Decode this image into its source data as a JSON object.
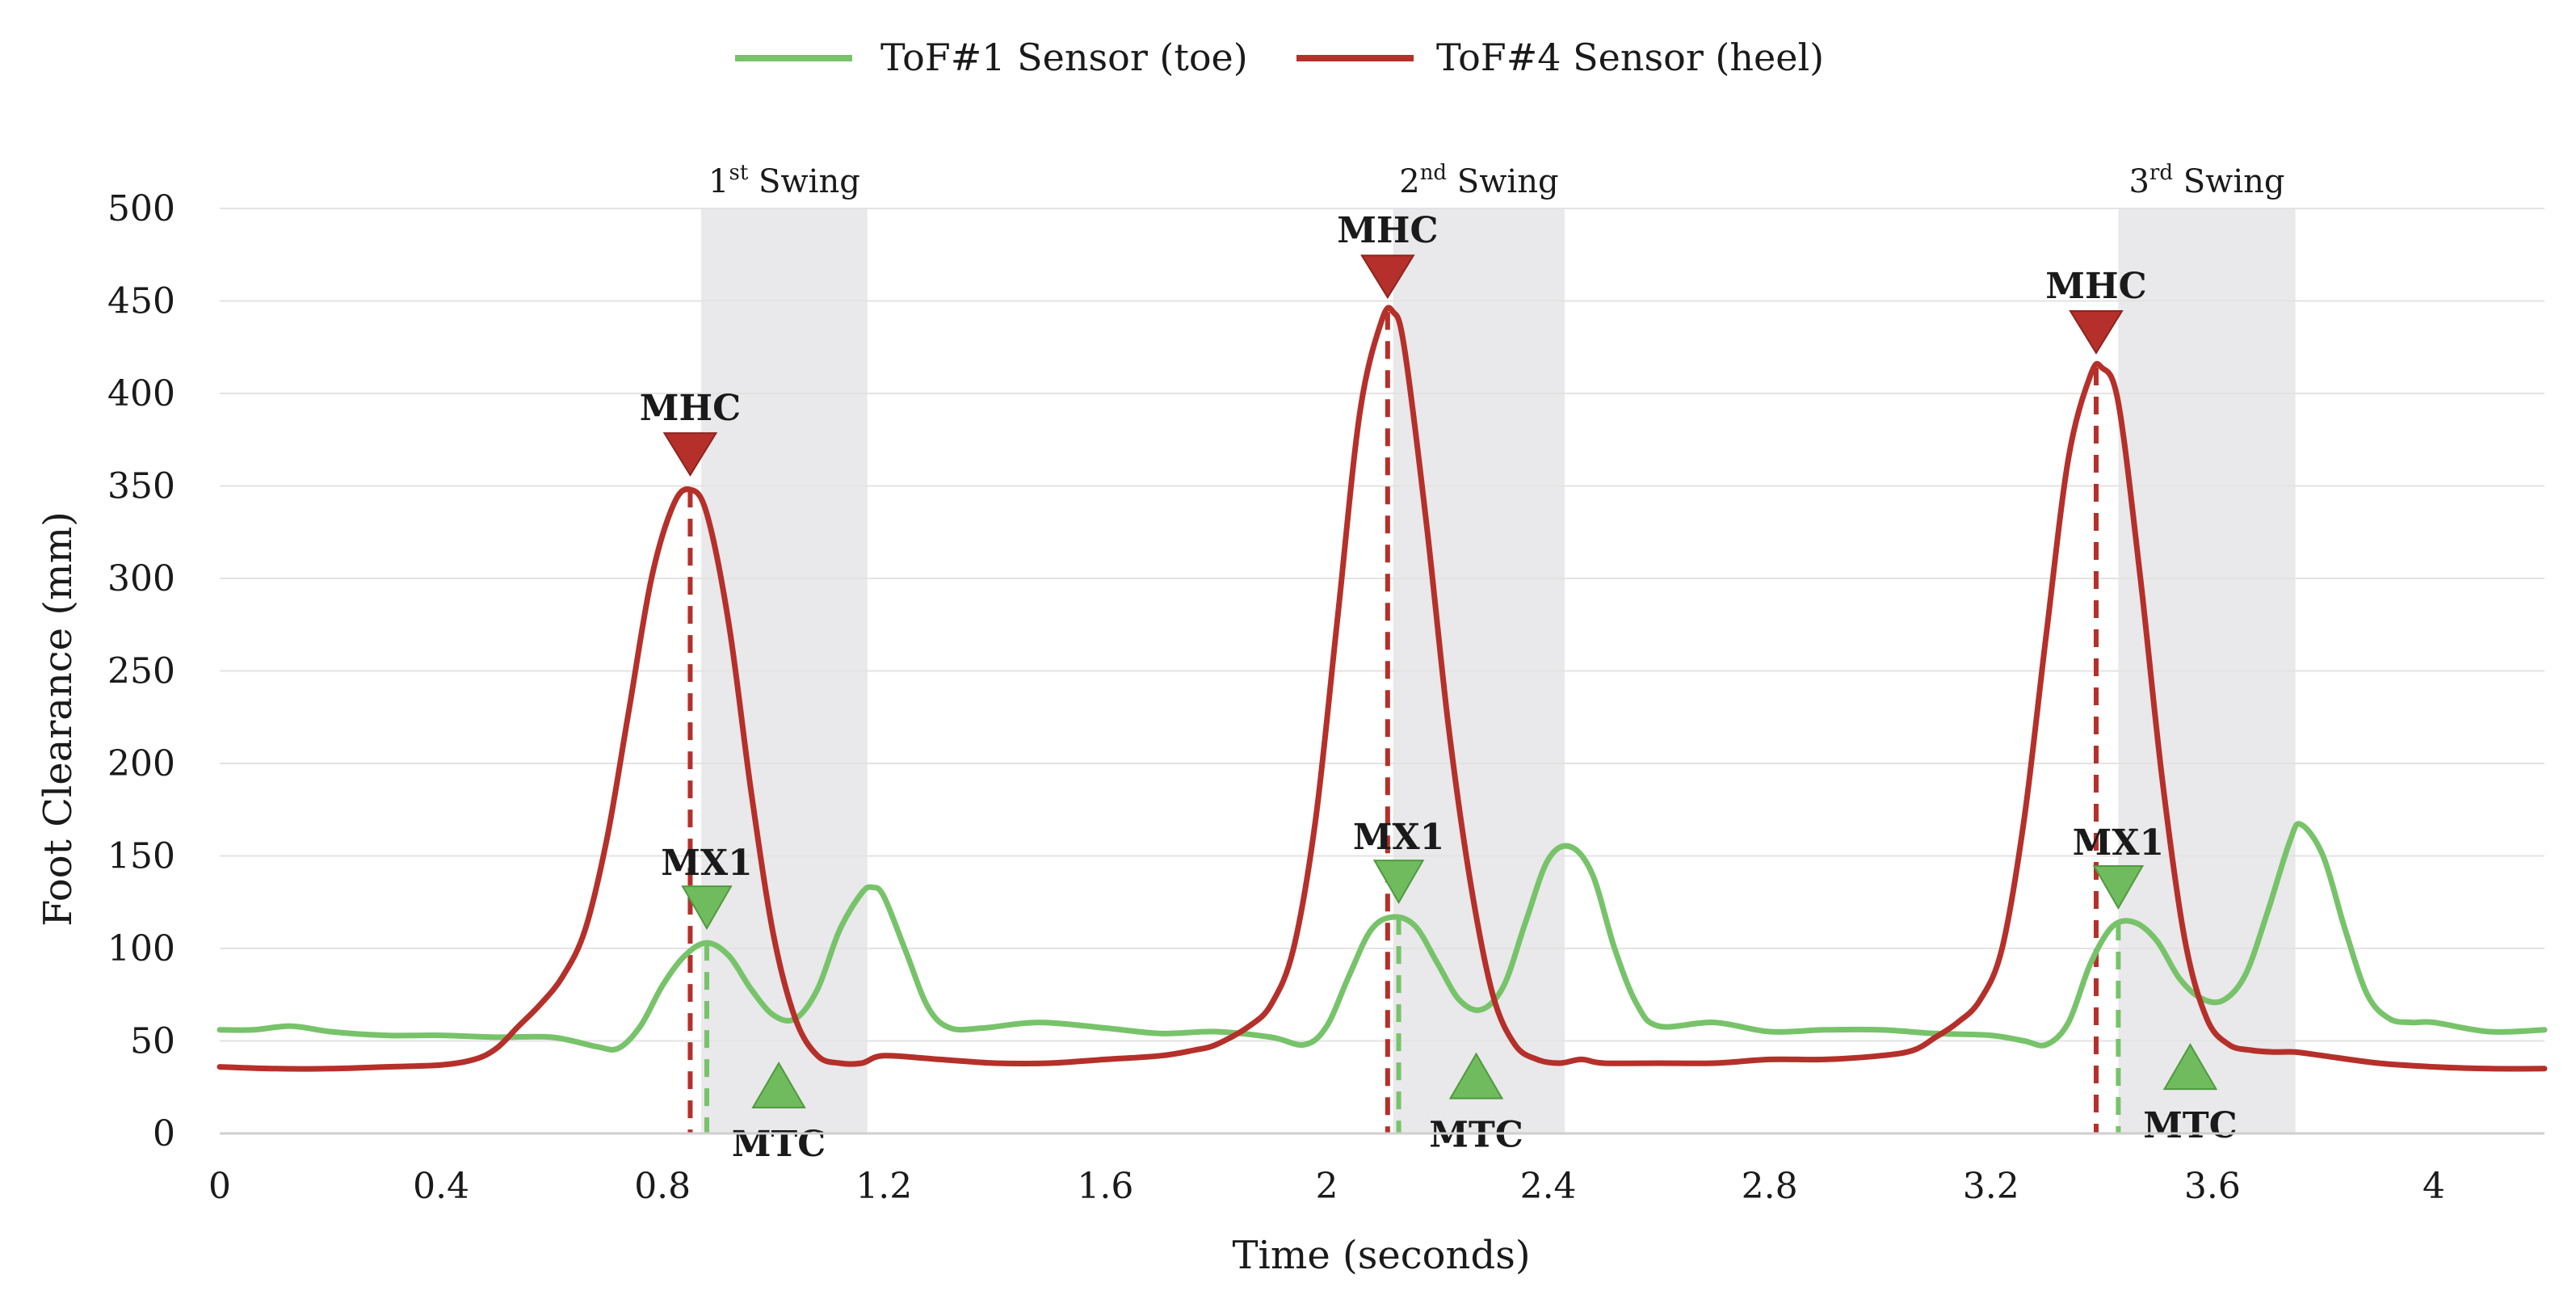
{
  "chart_data": {
    "type": "line",
    "title": "",
    "xlabel": "Time (seconds)",
    "ylabel": "Foot Clearance (mm)",
    "xlim": [
      0,
      4.2
    ],
    "ylim": [
      0,
      500
    ],
    "xticks": [
      0,
      0.4,
      0.8,
      1.2,
      1.6,
      2,
      2.4,
      2.8,
      3.2,
      3.6,
      4
    ],
    "xtick_labels": [
      "0",
      "0.4",
      "0.8",
      "1.2",
      "1.6",
      "2",
      "2.4",
      "2.8",
      "3.2",
      "3.6",
      "4"
    ],
    "yticks": [
      0,
      50,
      100,
      150,
      200,
      250,
      300,
      350,
      400,
      450,
      500
    ],
    "ytick_labels": [
      "0",
      "50",
      "100",
      "150",
      "200",
      "250",
      "300",
      "350",
      "400",
      "450",
      "500"
    ],
    "grid": "horizontal",
    "legend_position": "top-center",
    "series": [
      {
        "name": "ToF#1 Sensor (toe)",
        "color": "#77c36a",
        "x": [
          0,
          0.06,
          0.13,
          0.2,
          0.3,
          0.4,
          0.5,
          0.6,
          0.68,
          0.72,
          0.76,
          0.8,
          0.84,
          0.88,
          0.92,
          0.96,
          1.0,
          1.04,
          1.08,
          1.12,
          1.16,
          1.18,
          1.2,
          1.24,
          1.28,
          1.32,
          1.38,
          1.48,
          1.6,
          1.7,
          1.8,
          1.9,
          1.96,
          2.0,
          2.04,
          2.08,
          2.12,
          2.16,
          2.2,
          2.24,
          2.28,
          2.32,
          2.36,
          2.4,
          2.44,
          2.48,
          2.52,
          2.56,
          2.6,
          2.7,
          2.8,
          2.9,
          3.0,
          3.1,
          3.2,
          3.26,
          3.3,
          3.34,
          3.38,
          3.42,
          3.46,
          3.5,
          3.54,
          3.58,
          3.62,
          3.66,
          3.7,
          3.74,
          3.76,
          3.8,
          3.84,
          3.88,
          3.92,
          3.96,
          4.0,
          4.1,
          4.2
        ],
        "y": [
          56,
          56,
          58,
          55,
          53,
          53,
          52,
          52,
          47,
          46,
          58,
          80,
          96,
          103,
          96,
          78,
          64,
          62,
          78,
          110,
          130,
          133,
          128,
          98,
          68,
          57,
          57,
          60,
          57,
          54,
          55,
          52,
          48,
          58,
          85,
          110,
          117,
          112,
          92,
          72,
          67,
          80,
          115,
          148,
          155,
          140,
          100,
          70,
          58,
          60,
          55,
          56,
          56,
          54,
          53,
          50,
          48,
          60,
          92,
          112,
          114,
          104,
          84,
          73,
          72,
          86,
          120,
          158,
          167,
          150,
          110,
          75,
          62,
          60,
          60,
          55,
          56
        ]
      },
      {
        "name": "ToF#4 Sensor (heel)",
        "color": "#b5302a",
        "x": [
          0,
          0.1,
          0.2,
          0.3,
          0.4,
          0.46,
          0.5,
          0.54,
          0.58,
          0.62,
          0.66,
          0.7,
          0.74,
          0.78,
          0.82,
          0.85,
          0.88,
          0.92,
          0.96,
          1.0,
          1.04,
          1.08,
          1.12,
          1.16,
          1.2,
          1.3,
          1.4,
          1.5,
          1.6,
          1.7,
          1.76,
          1.8,
          1.86,
          1.9,
          1.94,
          1.98,
          2.02,
          2.06,
          2.1,
          2.12,
          2.14,
          2.18,
          2.22,
          2.26,
          2.3,
          2.34,
          2.38,
          2.42,
          2.46,
          2.5,
          2.6,
          2.7,
          2.8,
          2.9,
          3.0,
          3.06,
          3.1,
          3.14,
          3.18,
          3.22,
          3.26,
          3.3,
          3.34,
          3.38,
          3.4,
          3.43,
          3.47,
          3.51,
          3.55,
          3.59,
          3.63,
          3.67,
          3.71,
          3.75,
          3.8,
          3.9,
          4.0,
          4.1,
          4.2
        ],
        "y": [
          36,
          35,
          35,
          36,
          37,
          40,
          46,
          58,
          70,
          85,
          110,
          160,
          230,
          300,
          340,
          348,
          335,
          275,
          185,
          108,
          62,
          42,
          38,
          38,
          42,
          40,
          38,
          38,
          40,
          42,
          45,
          48,
          58,
          70,
          100,
          170,
          280,
          390,
          440,
          444,
          425,
          330,
          220,
          135,
          75,
          48,
          40,
          38,
          40,
          38,
          38,
          38,
          40,
          40,
          42,
          45,
          52,
          60,
          72,
          100,
          170,
          270,
          365,
          410,
          414,
          395,
          300,
          190,
          105,
          62,
          48,
          45,
          44,
          44,
          42,
          38,
          36,
          35,
          35
        ]
      }
    ],
    "swings": [
      {
        "num": "1",
        "sup": "st",
        "label": "Swing",
        "start": 0.87,
        "end": 1.17
      },
      {
        "num": "2",
        "sup": "nd",
        "label": "Swing",
        "start": 2.12,
        "end": 2.43
      },
      {
        "num": "3",
        "sup": "rd",
        "label": "Swing",
        "start": 3.43,
        "end": 3.75
      }
    ],
    "annotations": [
      {
        "label": "MHC",
        "kind": "heel-peak",
        "x": 0.85,
        "y": 348
      },
      {
        "label": "MHC",
        "kind": "heel-peak",
        "x": 2.11,
        "y": 444
      },
      {
        "label": "MHC",
        "kind": "heel-peak",
        "x": 3.39,
        "y": 414
      },
      {
        "label": "MX1",
        "kind": "toe-peak",
        "x": 0.88,
        "y": 103
      },
      {
        "label": "MX1",
        "kind": "toe-peak",
        "x": 2.13,
        "y": 117
      },
      {
        "label": "MX1",
        "kind": "toe-peak",
        "x": 3.43,
        "y": 114
      },
      {
        "label": "MTC",
        "kind": "toe-min",
        "x": 1.01,
        "y": 62
      },
      {
        "label": "MTC",
        "kind": "toe-min",
        "x": 2.27,
        "y": 67
      },
      {
        "label": "MTC",
        "kind": "toe-min",
        "x": 3.56,
        "y": 72
      }
    ]
  }
}
